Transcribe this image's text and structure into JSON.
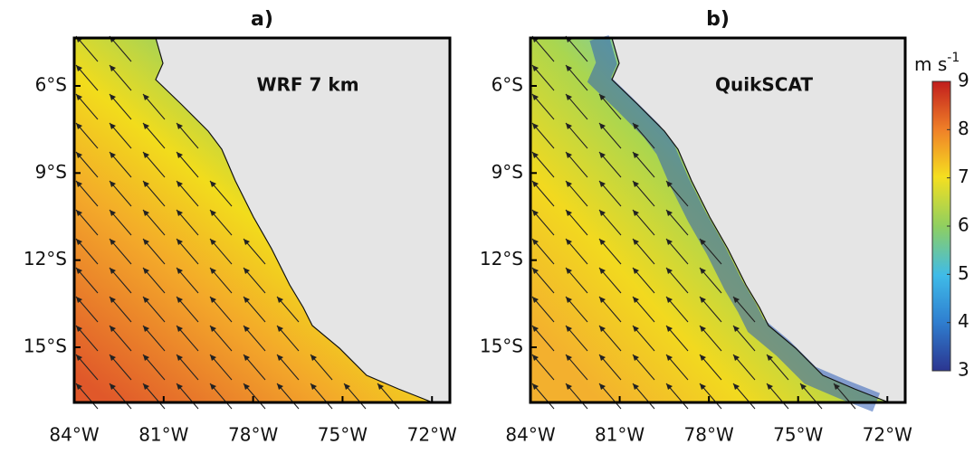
{
  "panels": [
    {
      "title": "a)",
      "label": "WRF 7 km",
      "lonlim": [
        -84,
        -71.4
      ],
      "latlim": [
        -4.35,
        -16.9
      ],
      "xticks": [
        {
          "value": -84,
          "label": "84°W"
        },
        {
          "value": -81,
          "label": "81°W"
        },
        {
          "value": -78,
          "label": "78°W"
        },
        {
          "value": -75,
          "label": "75°W"
        },
        {
          "value": -72,
          "label": "72°W"
        }
      ],
      "yticks": [
        {
          "value": -6,
          "label": "6°S"
        },
        {
          "value": -9,
          "label": "9°S"
        },
        {
          "value": -12,
          "label": "12°S"
        },
        {
          "value": -15,
          "label": "15°S"
        }
      ]
    },
    {
      "title": "b)",
      "label": "QuikSCAT",
      "lonlim": [
        -84,
        -71.4
      ],
      "latlim": [
        -4.35,
        -16.9
      ],
      "xticks": [
        {
          "value": -84,
          "label": "84°W"
        },
        {
          "value": -81,
          "label": "81°W"
        },
        {
          "value": -78,
          "label": "78°W"
        },
        {
          "value": -75,
          "label": "75°W"
        },
        {
          "value": -72,
          "label": "72°W"
        }
      ],
      "yticks": [
        {
          "value": -6,
          "label": "6°S"
        },
        {
          "value": -9,
          "label": "9°S"
        },
        {
          "value": -12,
          "label": "12°S"
        },
        {
          "value": -15,
          "label": "15°S"
        }
      ]
    }
  ],
  "colorbar": {
    "unit": "m s",
    "unit_exponent": "-1",
    "lim": [
      3,
      9
    ],
    "ticks": [
      3,
      4,
      5,
      6,
      7,
      8,
      9
    ]
  }
}
